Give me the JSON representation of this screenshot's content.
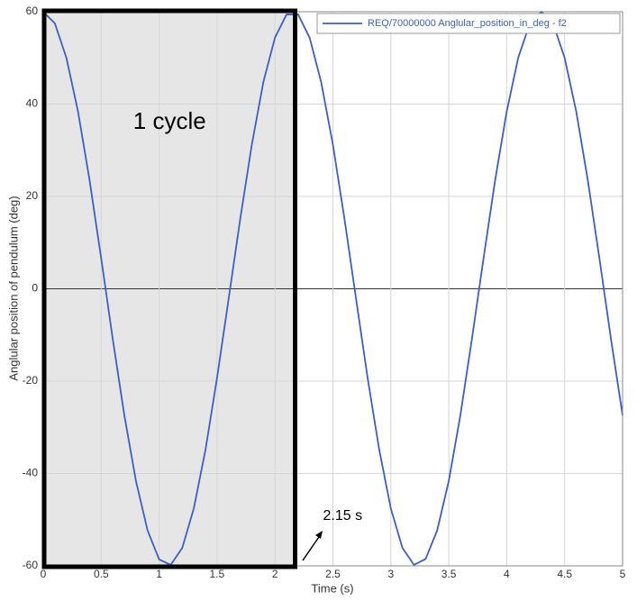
{
  "chart_data": {
    "type": "line",
    "xlabel": "Time (s)",
    "ylabel": "Anglular position of pendulum (deg)",
    "x": [
      0,
      0.1,
      0.2,
      0.3,
      0.4,
      0.5,
      0.6,
      0.7,
      0.8,
      0.9,
      1.0,
      1.1,
      1.2,
      1.3,
      1.4,
      1.5,
      1.6,
      1.7,
      1.8,
      1.9,
      2.0,
      2.1,
      2.2,
      2.3,
      2.4,
      2.5,
      2.6,
      2.7,
      2.8,
      2.9,
      3.0,
      3.1,
      3.2,
      3.3,
      3.4,
      3.5,
      3.6,
      3.7,
      3.8,
      3.9,
      4.0,
      4.1,
      4.2,
      4.3,
      4.4,
      4.5,
      4.6,
      4.7,
      4.8,
      4.9,
      5.0
    ],
    "series": [
      {
        "name": "REQ/70000000 Anglular_position_in_deg - f2",
        "color": "#3a5fc8",
        "values": [
          60,
          57.5,
          50.0,
          38.4,
          23.5,
          6.6,
          -10.9,
          -27.4,
          -41.6,
          -52.3,
          -58.6,
          -59.8,
          -56.1,
          -47.5,
          -34.9,
          -19.3,
          -2.2,
          15.1,
          31.2,
          44.8,
          54.4,
          59.4,
          59.4,
          54.3,
          44.6,
          31.2,
          15.1,
          -2.2,
          -19.4,
          -34.9,
          -47.6,
          -56.1,
          -59.8,
          -58.5,
          -52.3,
          -41.6,
          -27.4,
          -10.8,
          6.6,
          23.5,
          38.4,
          50.1,
          57.5,
          60,
          57.5,
          50.0,
          38.4,
          23.5,
          6.6,
          -10.9,
          -27.4
        ]
      }
    ],
    "xlim": [
      0,
      5
    ],
    "ylim": [
      -60,
      60
    ],
    "xticks": [
      0,
      0.5,
      1,
      1.5,
      2,
      2.5,
      3,
      3.5,
      4,
      4.5,
      5
    ],
    "yticks": [
      -60,
      -40,
      -20,
      0,
      20,
      40,
      60
    ],
    "grid": true,
    "legend": "top-right",
    "highlight": {
      "text": "1 cycle",
      "x0": 0,
      "x1": {
        "value": 2.15,
        "label": "2.15 s"
      }
    }
  }
}
